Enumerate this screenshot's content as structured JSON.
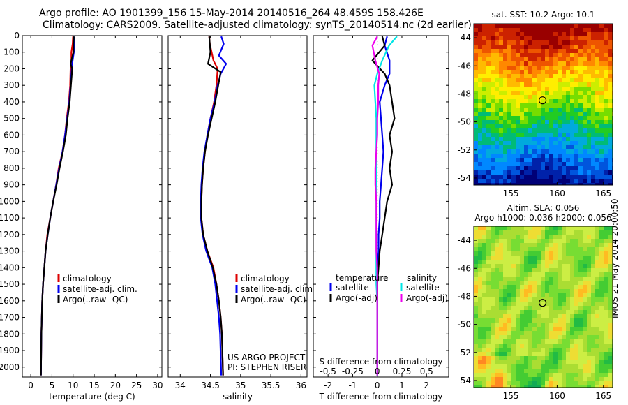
{
  "header": {
    "line1": "Argo profile: AO 1901399_156 15-May-2014 20140516_264 48.459S 158.426E",
    "line2": "Climatology: CARS2009. Satellite-adjusted climatology: synTS_20140514.nc (2d earlier)"
  },
  "side_stamp": "IMOS 21-May-2014 20:00:50",
  "colors": {
    "climatology": "#dd0000",
    "satellite": "#0000ee",
    "argo": "#000000",
    "salinity_satellite": "#00e5e5",
    "salinity_argo": "#ee00ee"
  },
  "chart_data": [
    {
      "type": "line",
      "id": "temperature",
      "xlabel": "temperature (deg C)",
      "ylabel": "",
      "xlim": [
        -2,
        31
      ],
      "ylim": [
        2060,
        0
      ],
      "y_reversed": true,
      "xticks": [
        0,
        5,
        10,
        15,
        20,
        25,
        30
      ],
      "yticks": [
        0,
        100,
        200,
        300,
        400,
        500,
        600,
        700,
        800,
        900,
        1000,
        1100,
        1200,
        1300,
        1400,
        1500,
        1600,
        1700,
        1800,
        1900,
        2000
      ],
      "legend": {
        "placement": "lower-center",
        "entries": [
          "climatology",
          "satellite-adj. clim.",
          "Argo(..raw -QC)"
        ]
      },
      "series": [
        {
          "name": "climatology",
          "color": "#dd0000",
          "x": [
            10.0,
            9.9,
            9.6,
            9.6,
            9.4,
            9.3,
            9.0,
            8.5,
            8.1,
            7.5,
            6.6,
            6.0,
            5.3,
            4.6,
            3.9,
            3.5,
            3.2,
            2.9,
            2.7,
            2.6,
            2.5,
            2.4
          ],
          "y": [
            5,
            50,
            100,
            150,
            200,
            300,
            400,
            500,
            600,
            700,
            800,
            900,
            1000,
            1100,
            1200,
            1300,
            1400,
            1500,
            1600,
            1700,
            1800,
            2050
          ]
        },
        {
          "name": "satellite-adj. clim.",
          "color": "#0000ee",
          "x": [
            10.3,
            10.3,
            10.2,
            9.9,
            9.7,
            9.4,
            9.1,
            8.6,
            8.1,
            7.5,
            6.7,
            6.0,
            5.3,
            4.6,
            4.0,
            3.5,
            3.2,
            2.9,
            2.7,
            2.6,
            2.5,
            2.4
          ],
          "y": [
            5,
            50,
            100,
            150,
            200,
            300,
            400,
            500,
            600,
            700,
            800,
            900,
            1000,
            1100,
            1200,
            1300,
            1400,
            1500,
            1600,
            1700,
            1800,
            2050
          ]
        },
        {
          "name": "Argo(..raw -QC)",
          "color": "#000000",
          "x": [
            10.2,
            10.1,
            10.1,
            9.4,
            9.8,
            9.5,
            9.2,
            8.7,
            8.3,
            7.6,
            6.8,
            6.1,
            5.3,
            4.6,
            4.0,
            3.5,
            3.2,
            2.9,
            2.7,
            2.6,
            2.5,
            2.4
          ],
          "y": [
            5,
            50,
            100,
            170,
            200,
            300,
            400,
            500,
            600,
            700,
            800,
            900,
            1000,
            1100,
            1200,
            1300,
            1400,
            1500,
            1600,
            1700,
            1800,
            2050
          ]
        }
      ]
    },
    {
      "type": "line",
      "id": "salinity",
      "xlabel": "salinity",
      "ylabel": "",
      "xlim": [
        33.8,
        36.1
      ],
      "ylim": [
        2060,
        0
      ],
      "y_reversed": true,
      "xticks": [
        34,
        34.5,
        35,
        35.5,
        36
      ],
      "legend": {
        "placement": "lower-center",
        "entries": [
          "climatology",
          "satellite-adj. clim.",
          "Argo(..raw -QC)"
        ]
      },
      "annotation": [
        "US ARGO PROJECT",
        "PI: STEPHEN RISER"
      ],
      "series": [
        {
          "name": "climatology",
          "color": "#dd0000",
          "x": [
            34.48,
            34.49,
            34.52,
            34.55,
            34.62,
            34.6,
            34.56,
            34.5,
            34.45,
            34.41,
            34.38,
            34.36,
            34.35,
            34.35,
            34.38,
            34.45,
            34.55,
            34.6,
            34.64,
            34.67,
            34.69,
            34.71
          ],
          "y": [
            5,
            50,
            100,
            150,
            200,
            300,
            400,
            500,
            600,
            700,
            800,
            900,
            1000,
            1100,
            1200,
            1300,
            1400,
            1500,
            1600,
            1700,
            1800,
            2050
          ]
        },
        {
          "name": "satellite-adj. clim.",
          "color": "#0000ee",
          "x": [
            34.68,
            34.72,
            34.64,
            34.76,
            34.67,
            34.62,
            34.57,
            34.5,
            34.45,
            34.4,
            34.37,
            34.35,
            34.34,
            34.34,
            34.37,
            34.43,
            34.53,
            34.58,
            34.61,
            34.64,
            34.66,
            34.68
          ],
          "y": [
            5,
            50,
            120,
            170,
            230,
            300,
            400,
            500,
            600,
            700,
            800,
            900,
            1000,
            1100,
            1200,
            1300,
            1400,
            1500,
            1600,
            1700,
            1800,
            2050
          ]
        },
        {
          "name": "Argo(..raw -QC)",
          "color": "#000000",
          "x": [
            34.48,
            34.49,
            34.5,
            34.46,
            34.67,
            34.63,
            34.58,
            34.52,
            34.46,
            34.41,
            34.38,
            34.36,
            34.35,
            34.35,
            34.38,
            34.45,
            34.54,
            34.6,
            34.64,
            34.67,
            34.69,
            34.71
          ],
          "y": [
            5,
            50,
            100,
            170,
            220,
            300,
            400,
            500,
            600,
            700,
            800,
            900,
            1000,
            1100,
            1200,
            1300,
            1400,
            1500,
            1600,
            1700,
            1800,
            2050
          ]
        }
      ]
    },
    {
      "type": "line",
      "id": "difference",
      "xlabel": "T difference from climatology",
      "xlabel_top": "S difference from climatology",
      "xlim": [
        -2.6,
        2.9
      ],
      "ylim": [
        2060,
        0
      ],
      "y_reversed": true,
      "xticks": [
        -2,
        -1,
        0,
        1,
        2
      ],
      "xticks_s": [
        -0.5,
        -0.25,
        0,
        0.25,
        0.5
      ],
      "s_to_t_scale": 4,
      "legend": {
        "placement": "lower-center",
        "temperature_head": "temperature",
        "salinity_head": "salinity",
        "entries": [
          "satellite",
          "Argo(-adj)",
          "satellite",
          "Argo(-adj)"
        ]
      },
      "series": [
        {
          "name": "temperature satellite",
          "color": "#0000ee",
          "unit": "T",
          "x": [
            0.4,
            0.3,
            0.5,
            0.5,
            0.3,
            0.1,
            0.15,
            0.2,
            0.25,
            0.2,
            0.15,
            0.1,
            0.1,
            0.05,
            0.05,
            0.0,
            0.0,
            0.0,
            0.0,
            0.0,
            0.0
          ],
          "y": [
            5,
            60,
            150,
            230,
            300,
            400,
            500,
            600,
            700,
            800,
            900,
            1000,
            1100,
            1200,
            1300,
            1400,
            1500,
            1600,
            1700,
            1800,
            2050
          ]
        },
        {
          "name": "temperature Argo(-adj)",
          "color": "#000000",
          "unit": "T",
          "x": [
            0.2,
            0.3,
            -0.2,
            0.3,
            0.5,
            0.6,
            0.7,
            0.5,
            0.6,
            0.5,
            0.6,
            0.4,
            0.3,
            0.2,
            0.1,
            0.05,
            0.0,
            0.0,
            0.0,
            0.0,
            0.0
          ],
          "y": [
            5,
            60,
            150,
            230,
            300,
            400,
            500,
            600,
            700,
            800,
            900,
            1000,
            1100,
            1200,
            1300,
            1400,
            1500,
            1600,
            1700,
            1800,
            2050
          ]
        },
        {
          "name": "salinity satellite",
          "color": "#00e5e5",
          "unit": "S",
          "x": [
            0.2,
            0.12,
            0.05,
            0.0,
            -0.03,
            -0.02,
            -0.01,
            -0.01,
            -0.01,
            -0.01,
            -0.01,
            -0.01,
            -0.01,
            -0.01,
            -0.01,
            -0.01,
            -0.01,
            0.0,
            0.0,
            0.0,
            0.0
          ],
          "y": [
            5,
            60,
            150,
            230,
            300,
            400,
            500,
            600,
            700,
            800,
            900,
            1000,
            1100,
            1200,
            1300,
            1400,
            1500,
            1600,
            1700,
            1800,
            2050
          ]
        },
        {
          "name": "salinity Argo(-adj)",
          "color": "#ee00ee",
          "unit": "S",
          "x": [
            0.0,
            -0.05,
            -0.02,
            0.02,
            0.01,
            0.01,
            0.0,
            0.0,
            -0.01,
            -0.02,
            -0.02,
            -0.01,
            -0.01,
            -0.01,
            -0.01,
            0.0,
            0.0,
            0.0,
            0.0,
            0.0,
            0.0
          ],
          "y": [
            5,
            60,
            150,
            230,
            300,
            400,
            500,
            600,
            700,
            800,
            900,
            1000,
            1100,
            1200,
            1300,
            1400,
            1500,
            1600,
            1700,
            1800,
            2050
          ]
        }
      ]
    },
    {
      "type": "heatmap",
      "id": "sst-map",
      "title": "sat. SST: 10.2  Argo: 10.1",
      "xlim": [
        151,
        166
      ],
      "ylim": [
        -54.5,
        -43
      ],
      "xticks": [
        155,
        160,
        165
      ],
      "yticks": [
        -44,
        -46,
        -48,
        -50,
        -52,
        -54
      ],
      "marker": {
        "lon": 158.43,
        "lat": -48.46
      }
    },
    {
      "type": "heatmap",
      "id": "sla-map",
      "title": "Altim. SLA: 0.056",
      "subtitle": "Argo h1000: 0.036 h2000: 0.056",
      "xlim": [
        151,
        166
      ],
      "ylim": [
        -54.5,
        -43
      ],
      "xticks": [
        155,
        160,
        165
      ],
      "yticks": [
        -44,
        -46,
        -48,
        -50,
        -52,
        -54
      ],
      "marker": {
        "lon": 158.43,
        "lat": -48.46
      }
    }
  ]
}
